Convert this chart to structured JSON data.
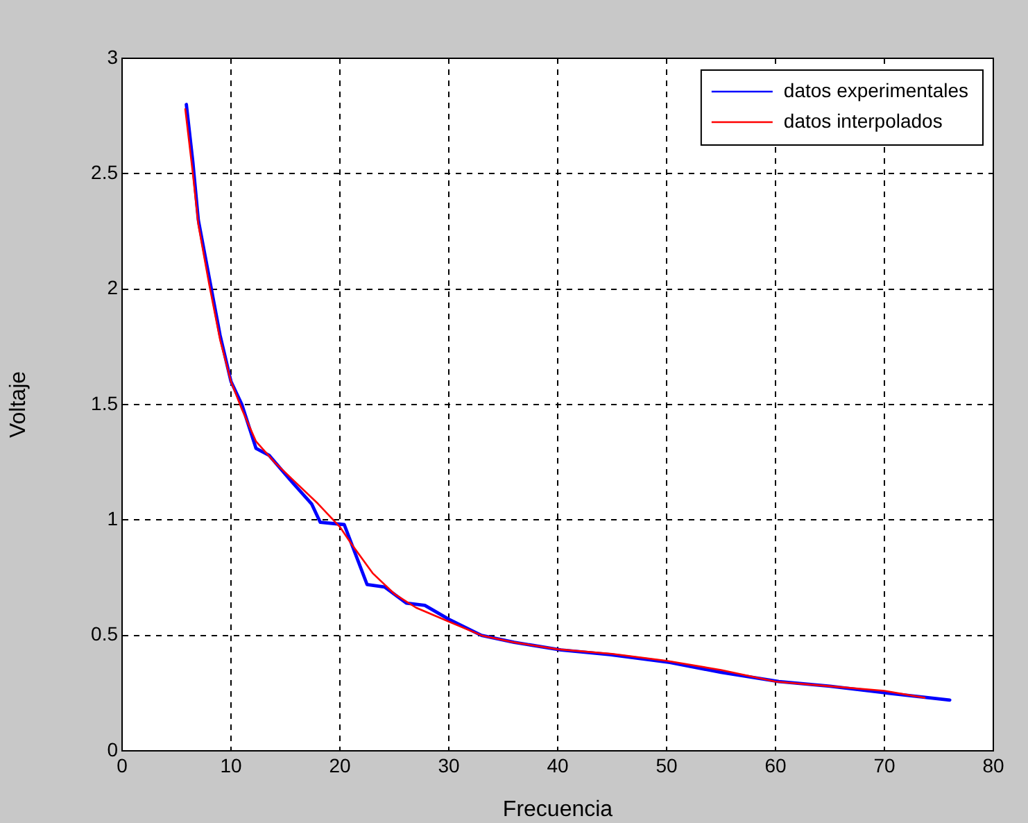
{
  "chart_data": {
    "type": "line",
    "xlabel": "Frecuencia",
    "ylabel": "Voltaje",
    "xlim": [
      0,
      80
    ],
    "xticks": [
      0,
      10,
      20,
      30,
      40,
      50,
      60,
      70,
      80
    ],
    "ylim": [
      0,
      3
    ],
    "yticks": [
      0,
      0.5,
      1,
      1.5,
      2,
      2.5,
      3
    ],
    "grid": true,
    "line_style": "solid",
    "legend": "top right",
    "series": [
      {
        "name": "datos experimentales",
        "color": "#0000ff",
        "x": [
          5.9,
          6.5,
          7,
          8,
          9,
          10,
          11,
          12.3,
          13.5,
          15.5,
          17.4,
          18.2,
          20.4,
          22.5,
          24.1,
          26.1,
          27.8,
          30,
          33,
          36,
          40.3,
          44.8,
          50.3,
          55,
          60.3,
          65,
          70.3,
          76
        ],
        "values": [
          2.8,
          2.55,
          2.3,
          2.05,
          1.8,
          1.6,
          1.5,
          1.31,
          1.28,
          1.17,
          1.07,
          0.99,
          0.98,
          0.72,
          0.71,
          0.64,
          0.63,
          0.57,
          0.5,
          0.47,
          0.437,
          0.417,
          0.383,
          0.34,
          0.3,
          0.28,
          0.25,
          0.22
        ]
      },
      {
        "name": "datos interpolados",
        "color": "#ff0000",
        "x": [
          5.8,
          6.5,
          7,
          8,
          9,
          10,
          11,
          12.3,
          14,
          16,
          18,
          20,
          21,
          23,
          25,
          27,
          30,
          33,
          36,
          40,
          45,
          50,
          55,
          60,
          65,
          70,
          73.7
        ],
        "values": [
          2.78,
          2.5,
          2.28,
          2.02,
          1.78,
          1.6,
          1.48,
          1.34,
          1.25,
          1.16,
          1.07,
          0.97,
          0.9,
          0.77,
          0.68,
          0.62,
          0.56,
          0.5,
          0.47,
          0.44,
          0.42,
          0.39,
          0.35,
          0.3,
          0.28,
          0.26,
          0.23
        ]
      }
    ]
  }
}
